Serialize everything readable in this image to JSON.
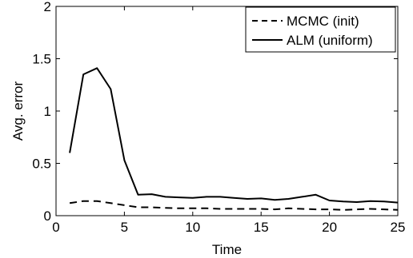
{
  "chart_data": {
    "type": "line",
    "title": "",
    "xlabel": "Time",
    "ylabel": "Avg. error",
    "xlim": [
      0,
      25
    ],
    "ylim": [
      0,
      2
    ],
    "xticks": [
      0,
      5,
      10,
      15,
      20,
      25
    ],
    "yticks": [
      0,
      0.5,
      1,
      1.5,
      2
    ],
    "xtick_labels": [
      "0",
      "5",
      "10",
      "15",
      "20",
      "25"
    ],
    "ytick_labels": [
      "0",
      "0.5",
      "1",
      "1.5",
      "2"
    ],
    "grid": false,
    "legend_position": "top-right",
    "x": [
      1,
      2,
      3,
      4,
      5,
      6,
      7,
      8,
      9,
      10,
      11,
      12,
      13,
      14,
      15,
      16,
      17,
      18,
      19,
      20,
      21,
      22,
      23,
      24,
      25
    ],
    "series": [
      {
        "name": "MCMC (init)",
        "style": "dashed",
        "color": "#000000",
        "values": [
          0.12,
          0.14,
          0.14,
          0.12,
          0.1,
          0.08,
          0.08,
          0.075,
          0.07,
          0.07,
          0.07,
          0.065,
          0.065,
          0.065,
          0.065,
          0.06,
          0.07,
          0.065,
          0.06,
          0.06,
          0.055,
          0.06,
          0.065,
          0.06,
          0.055
        ]
      },
      {
        "name": "ALM (uniform)",
        "style": "solid",
        "color": "#000000",
        "values": [
          0.6,
          1.35,
          1.41,
          1.21,
          0.53,
          0.2,
          0.205,
          0.18,
          0.175,
          0.17,
          0.18,
          0.18,
          0.17,
          0.16,
          0.165,
          0.15,
          0.16,
          0.18,
          0.2,
          0.145,
          0.135,
          0.13,
          0.14,
          0.135,
          0.125
        ]
      }
    ]
  }
}
